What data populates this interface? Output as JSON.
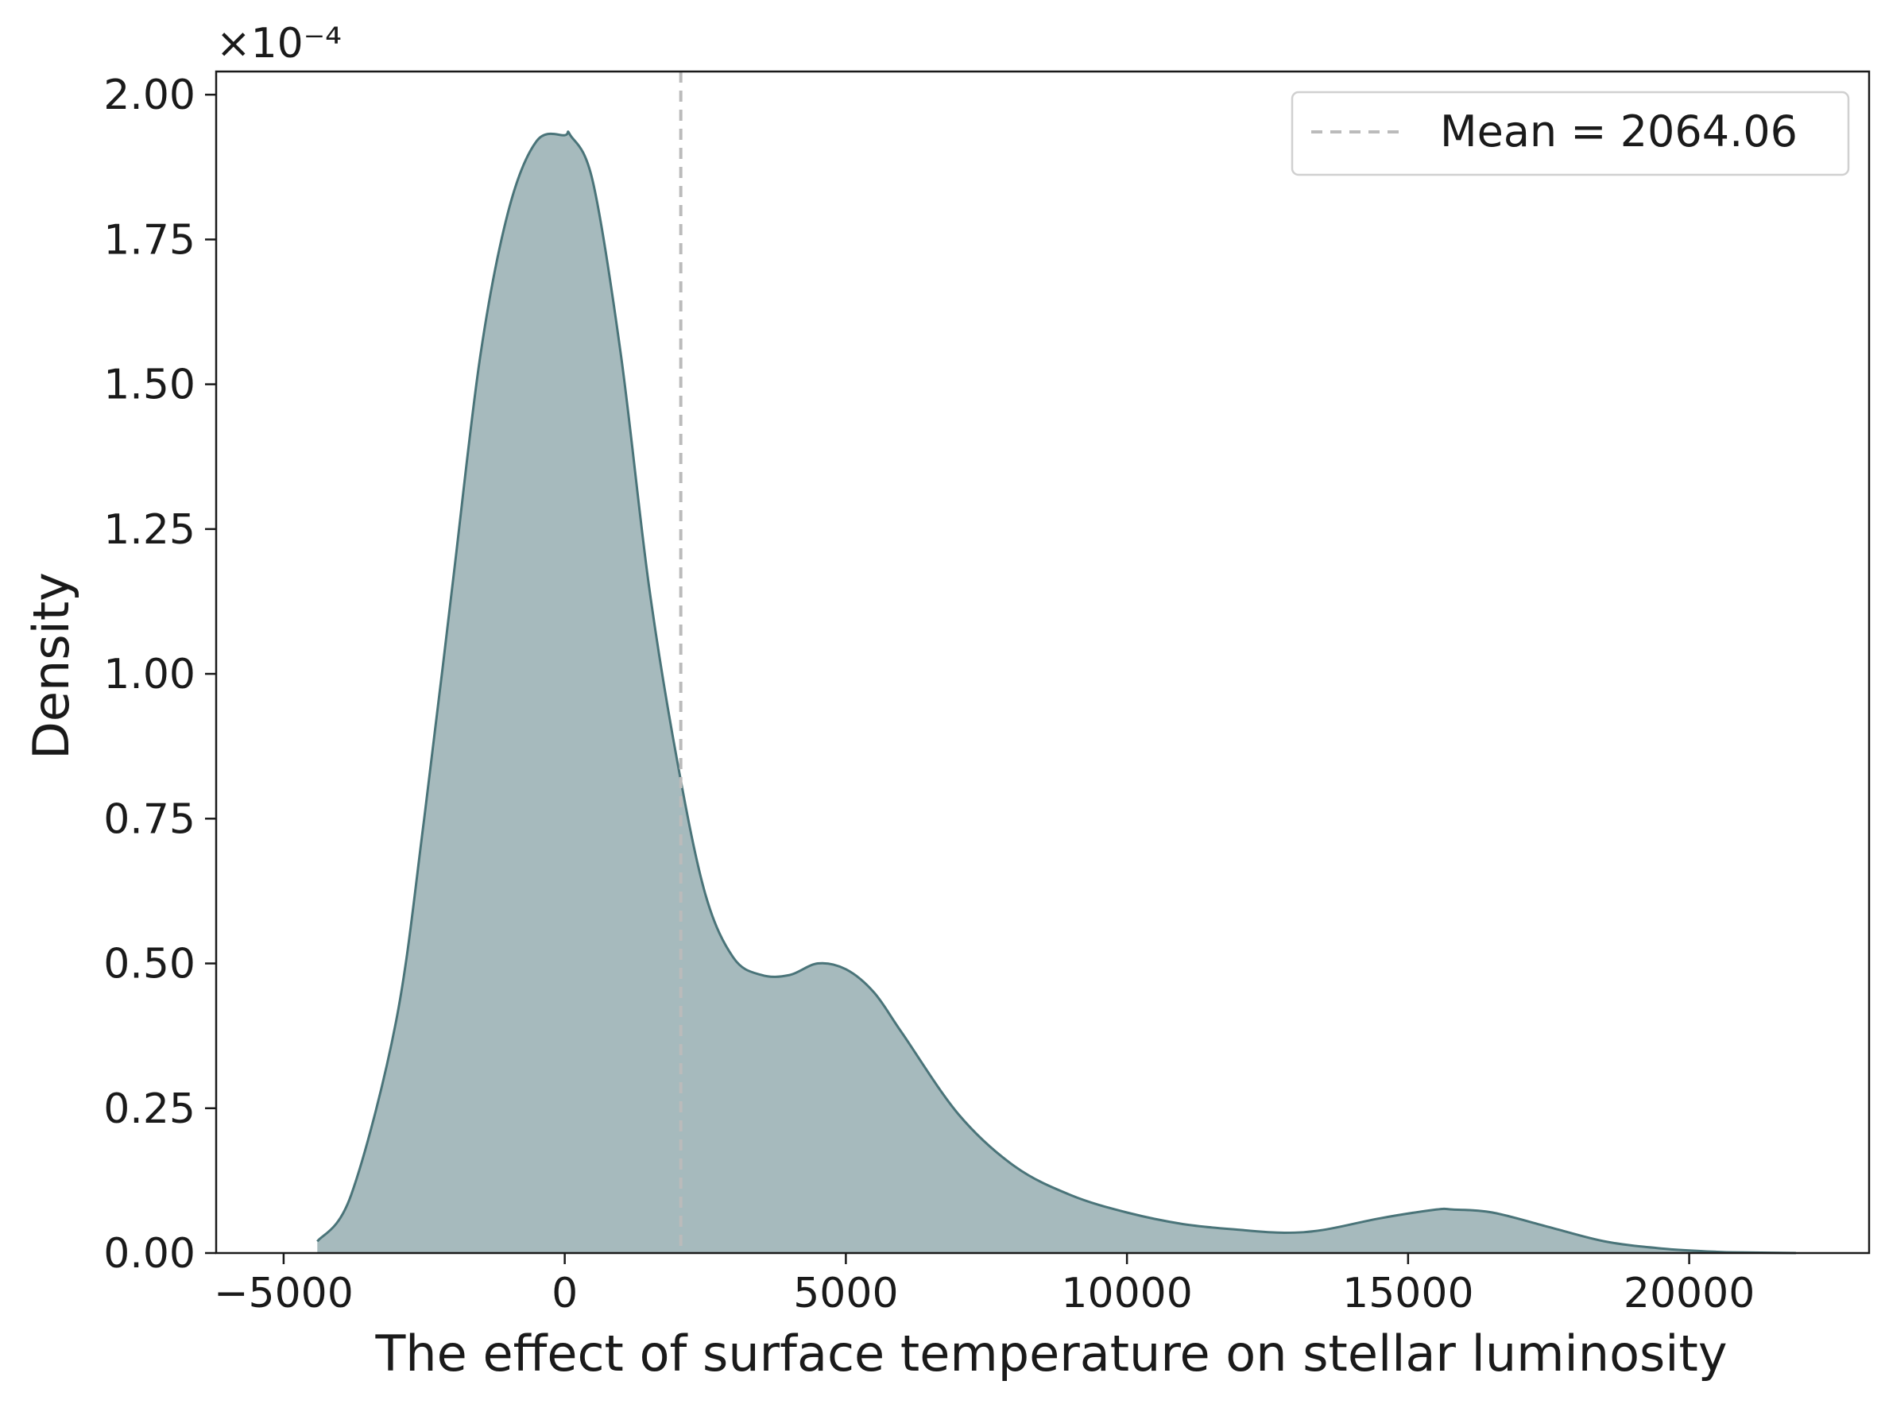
{
  "chart_data": {
    "type": "area",
    "xlabel": "The effect of surface temperature on stellar luminosity",
    "ylabel": "Density",
    "xlim": [
      -6200,
      23200
    ],
    "ylim": [
      0,
      2.04
    ],
    "y_scale_offset": "×10⁻⁴",
    "y_multiplier": 0.0001,
    "x_ticks": [
      -5000,
      0,
      5000,
      10000,
      15000,
      20000
    ],
    "x_tick_labels": [
      "−5000",
      "0",
      "5000",
      "10000",
      "15000",
      "20000"
    ],
    "y_ticks": [
      0,
      0.25,
      0.5,
      0.75,
      1.0,
      1.25,
      1.5,
      1.75,
      2.0
    ],
    "y_tick_labels": [
      "0.00",
      "0.25",
      "0.50",
      "0.75",
      "1.00",
      "1.25",
      "1.50",
      "1.75",
      "2.00"
    ],
    "grid": false,
    "series": [
      {
        "x": [
          -4400,
          -3800,
          -3000,
          -2500,
          -2000,
          -1500,
          -1000,
          -500,
          0,
          100,
          500,
          1000,
          1500,
          2000,
          2500,
          3000,
          3500,
          4000,
          4500,
          5000,
          5500,
          6000,
          7000,
          8000,
          9000,
          10000,
          11000,
          12000,
          12800,
          13500,
          14500,
          15500,
          15800,
          16500,
          17500,
          18500,
          19500,
          20500,
          21000,
          21900
        ],
        "y": [
          0.02,
          0.1,
          0.4,
          0.75,
          1.15,
          1.55,
          1.8,
          1.92,
          1.93,
          1.93,
          1.85,
          1.55,
          1.15,
          0.85,
          0.62,
          0.51,
          0.48,
          0.48,
          0.5,
          0.49,
          0.45,
          0.38,
          0.24,
          0.15,
          0.1,
          0.07,
          0.05,
          0.04,
          0.035,
          0.04,
          0.06,
          0.075,
          0.075,
          0.07,
          0.045,
          0.02,
          0.008,
          0.002,
          0.001,
          0.0
        ],
        "fill_color": "#a6babd",
        "line_color": "#4a7479"
      }
    ],
    "reference_lines": [
      {
        "x": 2064.06,
        "label": "Mean = 2064.06",
        "color": "#bbbbbb",
        "style": "dashed"
      }
    ],
    "legend_position": "top-right"
  }
}
